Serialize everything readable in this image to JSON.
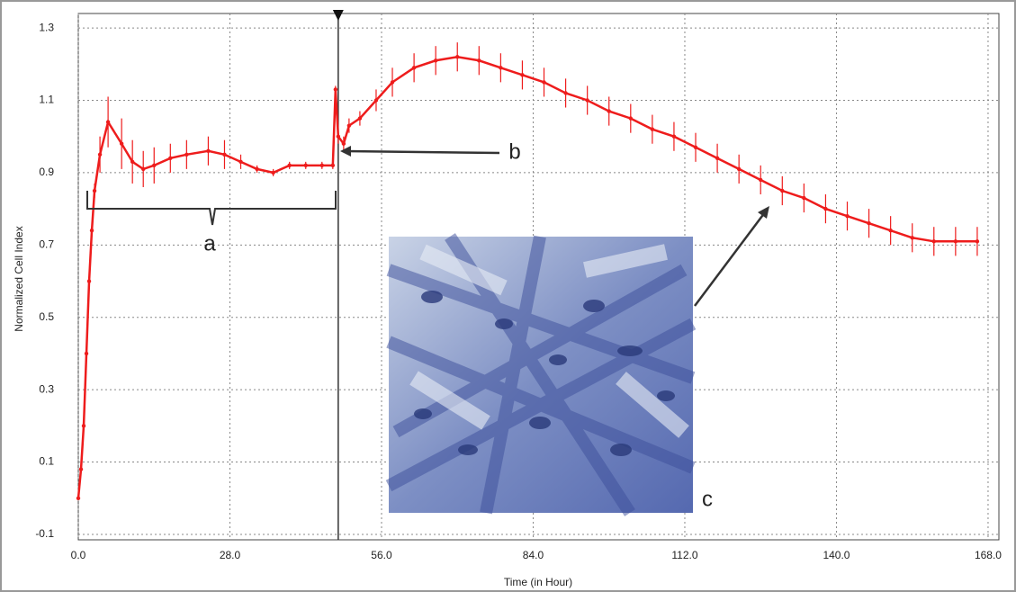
{
  "chart_data": {
    "type": "line",
    "x_label": "Time (in Hour)",
    "y_label": "Normalized Cell Index",
    "annotations": [
      "a",
      "b",
      "c"
    ],
    "event_line_x": 48,
    "xlim": [
      0,
      170
    ],
    "ylim": [
      -0.115,
      1.34
    ],
    "xticks": [
      {
        "value": 0,
        "label": "0.0"
      },
      {
        "value": 28,
        "label": "28.0"
      },
      {
        "value": 56,
        "label": "56.0"
      },
      {
        "value": 84,
        "label": "84.0"
      },
      {
        "value": 112,
        "label": "112.0"
      },
      {
        "value": 140,
        "label": "140.0"
      },
      {
        "value": 168,
        "label": "168.0"
      }
    ],
    "yticks": [
      -0.1,
      0.1,
      0.3,
      0.5,
      0.7,
      0.9,
      1.1,
      1.3
    ],
    "grid": true,
    "x": [
      0,
      0.5,
      1,
      1.5,
      2,
      2.5,
      3,
      4,
      5.5,
      8,
      10,
      12,
      14,
      17,
      20,
      24,
      27,
      30,
      33,
      36,
      39,
      42,
      45,
      47,
      47.5,
      48,
      49,
      50,
      52,
      55,
      58,
      62,
      66,
      70,
      74,
      78,
      82,
      86,
      90,
      94,
      98,
      102,
      106,
      110,
      114,
      118,
      122,
      126,
      130,
      134,
      138,
      142,
      146,
      150,
      154,
      158,
      162,
      166
    ],
    "series": [
      {
        "color": "#ee1c1c",
        "values": [
          0,
          0.08,
          0.2,
          0.4,
          0.6,
          0.74,
          0.85,
          0.95,
          1.04,
          0.98,
          0.93,
          0.91,
          0.92,
          0.94,
          0.95,
          0.96,
          0.95,
          0.93,
          0.91,
          0.9,
          0.92,
          0.92,
          0.92,
          0.92,
          1.13,
          1.0,
          0.98,
          1.03,
          1.05,
          1.1,
          1.15,
          1.19,
          1.21,
          1.22,
          1.21,
          1.19,
          1.17,
          1.15,
          1.12,
          1.1,
          1.07,
          1.05,
          1.02,
          1.0,
          0.97,
          0.94,
          0.91,
          0.88,
          0.85,
          0.83,
          0.8,
          0.78,
          0.76,
          0.74,
          0.72,
          0.71,
          0.71,
          0.71
        ],
        "errors": [
          0,
          0,
          0,
          0,
          0,
          0,
          0.02,
          0.05,
          0.07,
          0.07,
          0.06,
          0.05,
          0.05,
          0.04,
          0.04,
          0.04,
          0.04,
          0.02,
          0.01,
          0.01,
          0.01,
          0.01,
          0.01,
          0.01,
          0.01,
          0.02,
          0.02,
          0.02,
          0.02,
          0.03,
          0.04,
          0.04,
          0.04,
          0.04,
          0.04,
          0.04,
          0.04,
          0.04,
          0.04,
          0.04,
          0.04,
          0.04,
          0.04,
          0.04,
          0.04,
          0.04,
          0.04,
          0.04,
          0.04,
          0.04,
          0.04,
          0.04,
          0.04,
          0.04,
          0.04,
          0.04,
          0.04,
          0.04
        ]
      }
    ]
  }
}
